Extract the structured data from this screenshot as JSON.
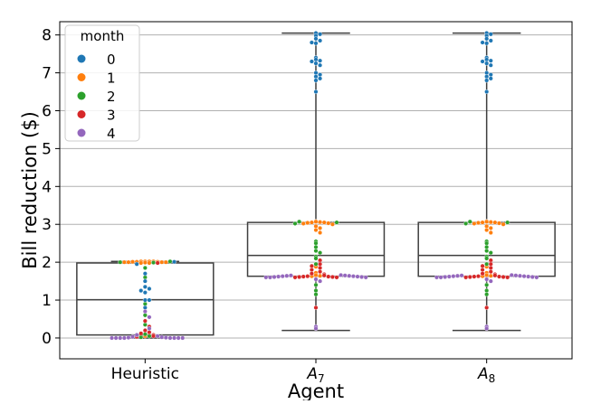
{
  "chart_data": {
    "type": "box-swarm",
    "title": "",
    "xlabel": "Agent",
    "ylabel": "Bill reduction ($)",
    "ylim": [
      -0.55,
      8.35
    ],
    "yticks": [
      0,
      1,
      2,
      3,
      4,
      5,
      6,
      7,
      8
    ],
    "grid": "horizontal",
    "categories": [
      {
        "label": "Heuristic",
        "base": "Heuristic",
        "sub": ""
      },
      {
        "label": "A7",
        "base": "A",
        "sub": "7"
      },
      {
        "label": "A8",
        "base": "A",
        "sub": "8"
      }
    ],
    "boxes": [
      {
        "category": "Heuristic",
        "min": 0.0,
        "q1": 0.08,
        "median": 1.01,
        "q3": 1.98,
        "max": 2.02
      },
      {
        "category": "A7",
        "min": 0.2,
        "q1": 1.63,
        "median": 2.18,
        "q3": 3.05,
        "max": 8.05
      },
      {
        "category": "A8",
        "min": 0.2,
        "q1": 1.63,
        "median": 2.18,
        "q3": 3.05,
        "max": 8.05
      }
    ],
    "legend": {
      "title": "month",
      "position": "upper-left",
      "entries": [
        {
          "label": "0",
          "color": "#1f77b4"
        },
        {
          "label": "1",
          "color": "#ff7f0e"
        },
        {
          "label": "2",
          "color": "#2ca02c"
        },
        {
          "label": "3",
          "color": "#d62728"
        },
        {
          "label": "4",
          "color": "#9467bd"
        }
      ]
    },
    "points": [
      {
        "category": "Heuristic",
        "month": 1,
        "values": [
          2.02,
          2.02,
          2.02,
          2.02,
          2.01,
          2.01,
          2.01,
          2.0,
          2.0,
          2.0,
          2.0,
          1.99,
          1.98,
          1.98,
          0.05
        ]
      },
      {
        "category": "Heuristic",
        "month": 2,
        "values": [
          2.02,
          2.0,
          1.99,
          1.85,
          1.6,
          0.9,
          0.6,
          0.35,
          0.1,
          0.05,
          0.02
        ]
      },
      {
        "category": "Heuristic",
        "month": 0,
        "values": [
          2.01,
          1.95,
          1.7,
          1.5,
          1.35,
          1.3,
          1.25,
          1.2,
          1.0,
          1.0,
          0.8
        ]
      },
      {
        "category": "Heuristic",
        "month": 3,
        "values": [
          1.98,
          0.45,
          0.3,
          0.2,
          0.15,
          0.12,
          0.08,
          0.05,
          0.03
        ]
      },
      {
        "category": "Heuristic",
        "month": 4,
        "values": [
          0.7,
          0.55,
          0.25,
          0.08,
          0.05,
          0.03,
          0.02,
          0.01,
          0.01,
          0.0,
          0.0,
          0.0,
          0.0,
          0.0,
          0.0,
          0.0,
          0.0
        ]
      },
      {
        "category": "A7",
        "month": 0,
        "values": [
          8.05,
          8.02,
          7.98,
          7.9,
          7.85,
          7.8,
          7.78,
          7.4,
          7.35,
          7.32,
          7.3,
          7.25,
          7.2,
          7.0,
          6.95,
          6.9,
          6.85,
          6.8,
          6.5
        ]
      },
      {
        "category": "A7",
        "month": 1,
        "values": [
          3.08,
          3.07,
          3.06,
          3.05,
          3.05,
          3.04,
          3.03,
          3.02,
          3.0,
          2.95,
          2.9,
          2.85,
          2.78,
          1.88,
          1.72,
          1.66,
          1.64,
          1.63
        ]
      },
      {
        "category": "A7",
        "month": 2,
        "values": [
          3.07,
          3.05,
          3.02,
          2.55,
          2.5,
          2.4,
          2.3,
          2.25,
          2.15,
          2.1,
          1.95,
          1.4,
          1.25,
          1.15
        ]
      },
      {
        "category": "A7",
        "month": 3,
        "values": [
          2.05,
          1.95,
          1.9,
          1.85,
          1.8,
          1.75,
          1.7,
          1.68,
          1.65,
          1.63,
          1.62,
          1.62,
          1.61,
          1.61,
          1.6,
          1.6,
          0.8
        ]
      },
      {
        "category": "A7",
        "month": 4,
        "values": [
          1.66,
          1.65,
          1.65,
          1.64,
          1.64,
          1.63,
          1.63,
          1.62,
          1.62,
          1.61,
          1.61,
          1.6,
          1.6,
          1.6,
          1.55,
          1.5,
          0.3,
          0.25
        ]
      },
      {
        "category": "A8",
        "month": 0,
        "values": [
          8.05,
          8.02,
          7.98,
          7.9,
          7.85,
          7.8,
          7.78,
          7.4,
          7.35,
          7.32,
          7.3,
          7.25,
          7.2,
          7.0,
          6.95,
          6.9,
          6.85,
          6.8,
          6.5
        ]
      },
      {
        "category": "A8",
        "month": 1,
        "values": [
          3.08,
          3.07,
          3.06,
          3.05,
          3.05,
          3.04,
          3.03,
          3.02,
          3.0,
          2.95,
          2.9,
          2.85,
          2.78,
          1.88,
          1.72,
          1.66,
          1.64,
          1.63
        ]
      },
      {
        "category": "A8",
        "month": 2,
        "values": [
          3.07,
          3.05,
          3.02,
          2.55,
          2.5,
          2.4,
          2.3,
          2.25,
          2.15,
          2.1,
          1.95,
          1.4,
          1.25,
          1.15
        ]
      },
      {
        "category": "A8",
        "month": 3,
        "values": [
          2.05,
          1.95,
          1.9,
          1.85,
          1.8,
          1.75,
          1.7,
          1.68,
          1.65,
          1.63,
          1.62,
          1.62,
          1.61,
          1.61,
          1.6,
          1.6,
          0.8
        ]
      },
      {
        "category": "A8",
        "month": 4,
        "values": [
          1.66,
          1.65,
          1.65,
          1.64,
          1.64,
          1.63,
          1.63,
          1.62,
          1.62,
          1.61,
          1.61,
          1.6,
          1.6,
          1.6,
          1.55,
          1.5,
          0.3,
          0.25
        ]
      }
    ]
  }
}
